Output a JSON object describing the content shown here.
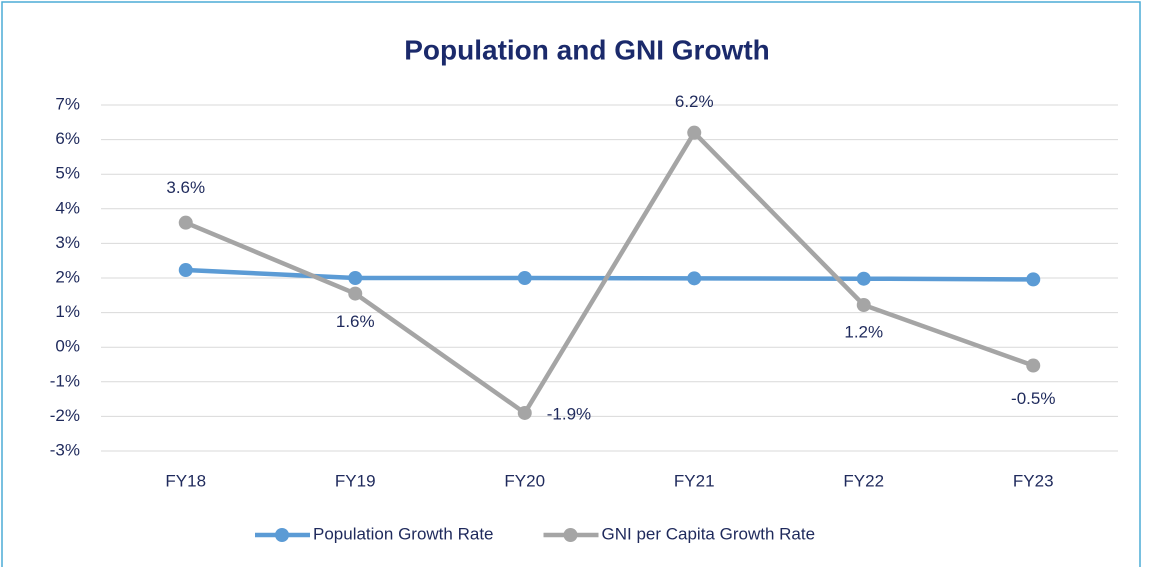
{
  "chart_data": {
    "type": "line",
    "title": "Population and GNI Growth",
    "categories": [
      "FY18",
      "FY19",
      "FY20",
      "FY21",
      "FY22",
      "FY23"
    ],
    "series": [
      {
        "name": "Population Growth Rate",
        "color": "#5b9bd5",
        "values": [
          2.23,
          2.0,
          2.0,
          1.99,
          1.98,
          1.96
        ]
      },
      {
        "name": "GNI per Capita Growth Rate",
        "color": "#a5a5a5",
        "values": [
          3.6,
          1.55,
          -1.9,
          6.2,
          1.22,
          -0.53
        ],
        "value_labels": [
          "3.6%",
          "1.6%",
          "-1.9%",
          "6.2%",
          "1.2%",
          "-0.5%"
        ]
      }
    ],
    "ylim": [
      -3,
      7
    ],
    "yticks": [
      {
        "value": -3,
        "label": "-3%"
      },
      {
        "value": -2,
        "label": "-2%"
      },
      {
        "value": -1,
        "label": "-1%"
      },
      {
        "value": 0,
        "label": "0%"
      },
      {
        "value": 1,
        "label": "1%"
      },
      {
        "value": 2,
        "label": "2%"
      },
      {
        "value": 3,
        "label": "3%"
      },
      {
        "value": 4,
        "label": "4%"
      },
      {
        "value": 5,
        "label": "5%"
      },
      {
        "value": 6,
        "label": "6%"
      },
      {
        "value": 7,
        "label": "7%"
      }
    ],
    "grid": true,
    "legend": "bottom"
  }
}
